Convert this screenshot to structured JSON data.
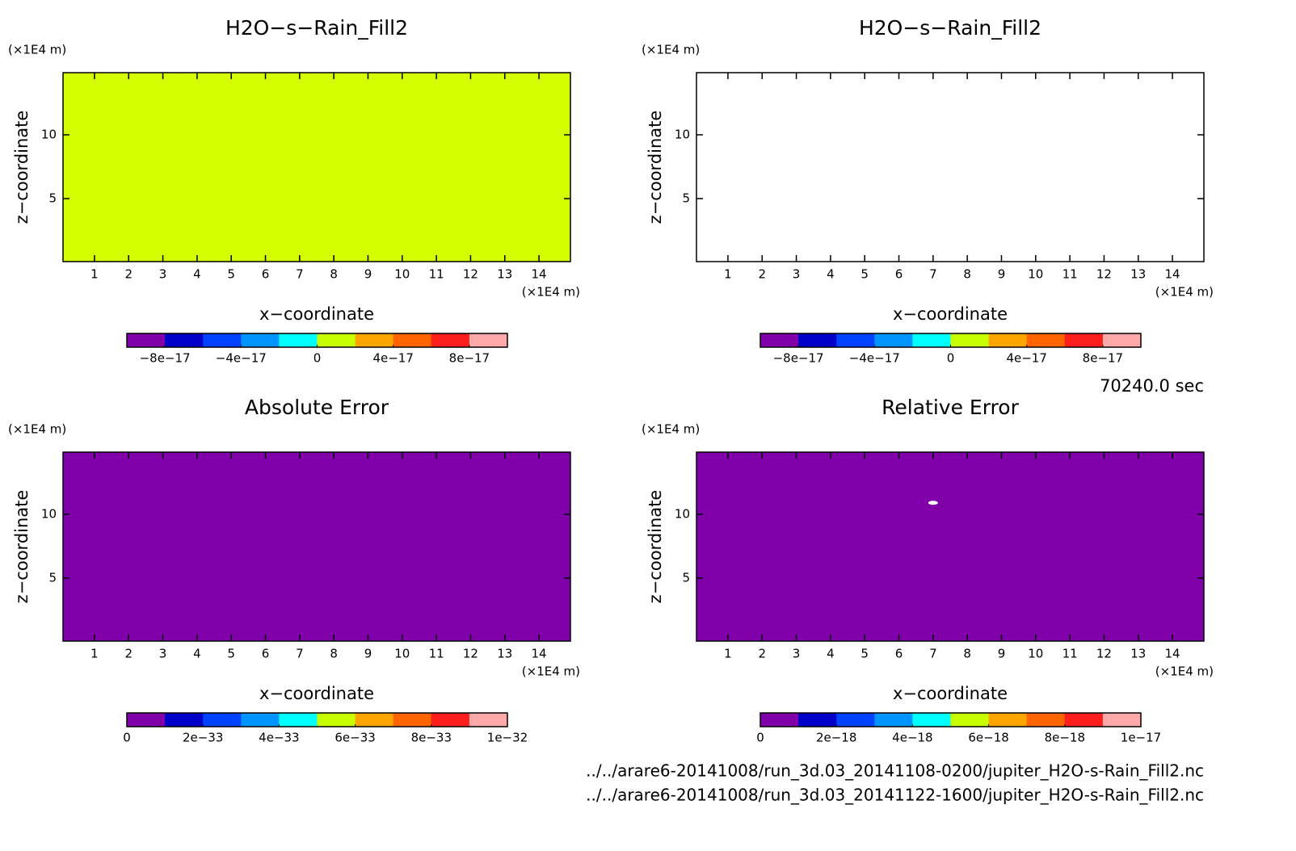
{
  "time_label": "70240.0 sec",
  "files": [
    "../../arare6-20141008/run_3d.03_20141108-0200/jupiter_H2O-s-Rain_Fill2.nc",
    "../../arare6-20141008/run_3d.03_20141122-1600/jupiter_H2O-s-Rain_Fill2.nc"
  ],
  "chart_data": [
    {
      "type": "heatmap",
      "title": "H2O−s−Rain_Fill2",
      "x_label": "x−coordinate",
      "y_label": "z−coordinate",
      "x_unit": "(×1E4 m)",
      "y_unit": "(×1E4 m)",
      "xlim": [
        0.08,
        14.92
      ],
      "ylim": [
        0.06,
        14.87
      ],
      "xticks": [
        1,
        2,
        3,
        4,
        5,
        6,
        7,
        8,
        9,
        10,
        11,
        12,
        13,
        14
      ],
      "yticks": [
        5,
        10
      ],
      "field_color": "#d4ff00",
      "blank_points": [],
      "colorbar": {
        "lim": [
          -1e-16,
          1e-16
        ],
        "colors": [
          "#8000aa",
          "#0000c8",
          "#0040ff",
          "#0094ff",
          "#00ffff",
          "#c8ff00",
          "#ffa500",
          "#ff6400",
          "#ff1e1e",
          "#ffaaaa"
        ],
        "ticks": [
          {
            "value": -8e-17,
            "label": "−8e−17"
          },
          {
            "value": -4e-17,
            "label": "−4e−17"
          },
          0,
          {
            "value": 4e-17,
            "label": "4e−17"
          },
          {
            "value": 8e-17,
            "label": "8e−17"
          }
        ]
      }
    },
    {
      "type": "heatmap",
      "title": "H2O−s−Rain_Fill2",
      "x_label": "x−coordinate",
      "y_label": "z−coordinate",
      "x_unit": "(×1E4 m)",
      "y_unit": "(×1E4 m)",
      "xlim": [
        0.08,
        14.92
      ],
      "ylim": [
        0.06,
        14.87
      ],
      "xticks": [
        1,
        2,
        3,
        4,
        5,
        6,
        7,
        8,
        9,
        10,
        11,
        12,
        13,
        14
      ],
      "yticks": [
        5,
        10
      ],
      "field_color": null,
      "blank_points": [],
      "colorbar": {
        "lim": [
          -1e-16,
          1e-16
        ],
        "colors": [
          "#8000aa",
          "#0000c8",
          "#0040ff",
          "#0094ff",
          "#00ffff",
          "#c8ff00",
          "#ffa500",
          "#ff6400",
          "#ff1e1e",
          "#ffaaaa"
        ],
        "ticks": [
          {
            "value": -8e-17,
            "label": "−8e−17"
          },
          {
            "value": -4e-17,
            "label": "−4e−17"
          },
          0,
          {
            "value": 4e-17,
            "label": "4e−17"
          },
          {
            "value": 8e-17,
            "label": "8e−17"
          }
        ]
      }
    },
    {
      "type": "heatmap",
      "title": "Absolute Error",
      "x_label": "x−coordinate",
      "y_label": "z−coordinate",
      "x_unit": "(×1E4 m)",
      "y_unit": "(×1E4 m)",
      "xlim": [
        0.08,
        14.92
      ],
      "ylim": [
        0.06,
        14.87
      ],
      "xticks": [
        1,
        2,
        3,
        4,
        5,
        6,
        7,
        8,
        9,
        10,
        11,
        12,
        13,
        14
      ],
      "yticks": [
        5,
        10
      ],
      "field_color": "#8000aa",
      "blank_points": [],
      "colorbar": {
        "lim": [
          0,
          1e-32
        ],
        "colors": [
          "#8000aa",
          "#0000c8",
          "#0040ff",
          "#0094ff",
          "#00ffff",
          "#c8ff00",
          "#ffa500",
          "#ff6400",
          "#ff1e1e",
          "#ffaaaa"
        ],
        "ticks": [
          0,
          {
            "value": 2e-33,
            "label": "2e−33"
          },
          {
            "value": 4e-33,
            "label": "4e−33"
          },
          {
            "value": 6e-33,
            "label": "6e−33"
          },
          {
            "value": 8e-33,
            "label": "8e−33"
          },
          {
            "value": 1e-32,
            "label": "1e−32"
          }
        ]
      }
    },
    {
      "type": "heatmap",
      "title": "Relative Error",
      "x_label": "x−coordinate",
      "y_label": "z−coordinate",
      "x_unit": "(×1E4 m)",
      "y_unit": "(×1E4 m)",
      "xlim": [
        0.08,
        14.92
      ],
      "ylim": [
        0.06,
        14.87
      ],
      "xticks": [
        1,
        2,
        3,
        4,
        5,
        6,
        7,
        8,
        9,
        10,
        11,
        12,
        13,
        14
      ],
      "yticks": [
        5,
        10
      ],
      "field_color": "#8000aa",
      "blank_points": [
        [
          7,
          10.9
        ]
      ],
      "colorbar": {
        "lim": [
          0,
          1e-17
        ],
        "colors": [
          "#8000aa",
          "#0000c8",
          "#0040ff",
          "#0094ff",
          "#00ffff",
          "#c8ff00",
          "#ffa500",
          "#ff6400",
          "#ff1e1e",
          "#ffaaaa"
        ],
        "ticks": [
          0,
          {
            "value": 2e-18,
            "label": "2e−18"
          },
          {
            "value": 4e-18,
            "label": "4e−18"
          },
          {
            "value": 6e-18,
            "label": "6e−18"
          },
          {
            "value": 8e-18,
            "label": "8e−18"
          },
          {
            "value": 1e-17,
            "label": "1e−17"
          }
        ]
      }
    }
  ]
}
